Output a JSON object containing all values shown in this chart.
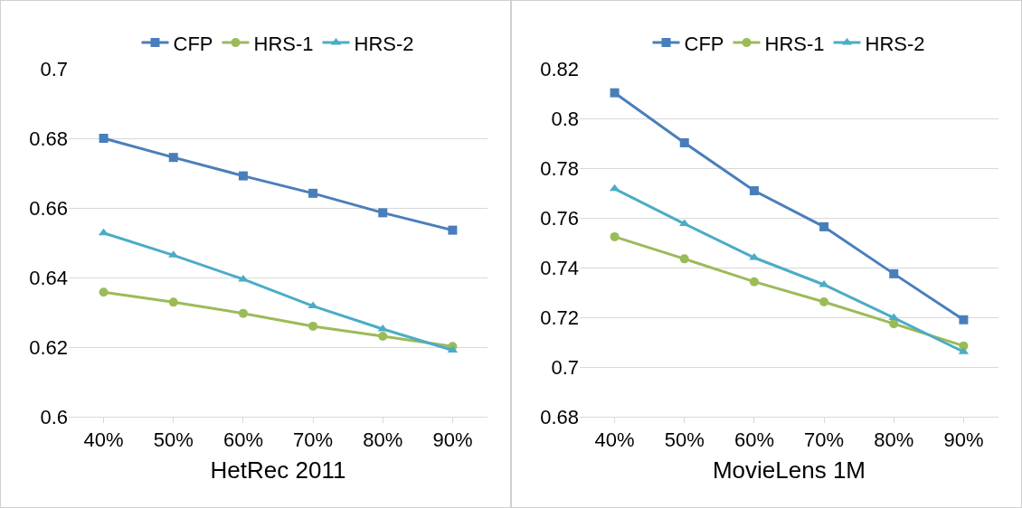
{
  "chart_data": [
    {
      "type": "line",
      "xlabel": "HetRec 2011",
      "categories": [
        "40%",
        "50%",
        "60%",
        "70%",
        "80%",
        "90%"
      ],
      "ylim": [
        0.6,
        0.7
      ],
      "yticks": [
        {
          "value": 0.6,
          "label": "0.6"
        },
        {
          "value": 0.62,
          "label": "0.62"
        },
        {
          "value": 0.64,
          "label": "0.64"
        },
        {
          "value": 0.66,
          "label": "0.66"
        },
        {
          "value": 0.68,
          "label": "0.68"
        },
        {
          "value": 0.7,
          "label": "0.7"
        }
      ],
      "grid": "y",
      "legend": "top",
      "series": [
        {
          "name": "CFP",
          "color": "#4a7ebb",
          "marker": "square",
          "values": [
            0.68,
            0.6745,
            0.6692,
            0.6642,
            0.6586,
            0.6536
          ]
        },
        {
          "name": "HRS-1",
          "color": "#9bbb59",
          "marker": "circle",
          "values": [
            0.6358,
            0.6329,
            0.6297,
            0.626,
            0.6231,
            0.6202
          ]
        },
        {
          "name": "HRS-2",
          "color": "#4bacc6",
          "marker": "triangle",
          "values": [
            0.6528,
            0.6464,
            0.6395,
            0.6318,
            0.6252,
            0.6191
          ]
        }
      ]
    },
    {
      "type": "line",
      "xlabel": "MovieLens 1M",
      "categories": [
        "40%",
        "50%",
        "60%",
        "70%",
        "80%",
        "90%"
      ],
      "ylim": [
        0.68,
        0.82
      ],
      "yticks": [
        {
          "value": 0.68,
          "label": "0.68"
        },
        {
          "value": 0.7,
          "label": "0.7"
        },
        {
          "value": 0.72,
          "label": "0.72"
        },
        {
          "value": 0.74,
          "label": "0.74"
        },
        {
          "value": 0.76,
          "label": "0.76"
        },
        {
          "value": 0.78,
          "label": "0.78"
        },
        {
          "value": 0.8,
          "label": "0.8"
        },
        {
          "value": 0.82,
          "label": "0.82"
        }
      ],
      "grid": "y",
      "legend": "top",
      "series": [
        {
          "name": "CFP",
          "color": "#4a7ebb",
          "marker": "square",
          "values": [
            0.8103,
            0.7902,
            0.7709,
            0.7564,
            0.7375,
            0.719
          ]
        },
        {
          "name": "HRS-1",
          "color": "#9bbb59",
          "marker": "circle",
          "values": [
            0.7524,
            0.7435,
            0.7343,
            0.7262,
            0.7174,
            0.7085
          ]
        },
        {
          "name": "HRS-2",
          "color": "#4bacc6",
          "marker": "triangle",
          "values": [
            0.7717,
            0.7576,
            0.744,
            0.7331,
            0.7198,
            0.7061
          ]
        }
      ]
    }
  ]
}
